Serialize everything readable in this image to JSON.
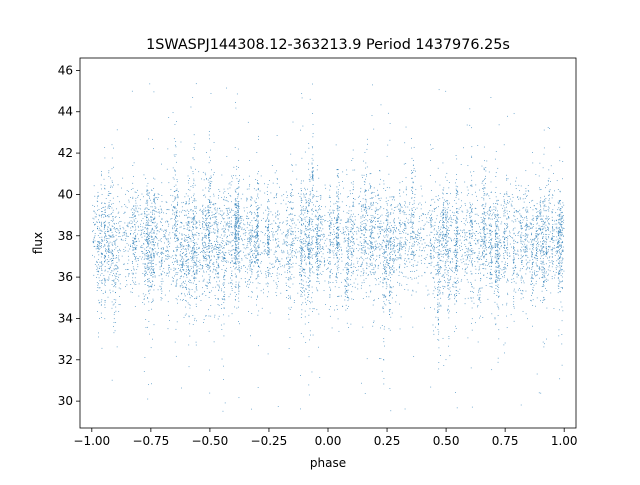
{
  "chart_data": {
    "type": "scatter",
    "title": "1SWASPJ144308.12-363213.9 Period 1437976.25s",
    "xlabel": "phase",
    "ylabel": "flux",
    "xlim": [
      -1.05,
      1.05
    ],
    "ylim": [
      28.7,
      46.6
    ],
    "x_ticks": [
      -1.0,
      -0.75,
      -0.5,
      -0.25,
      0.0,
      0.25,
      0.5,
      0.75,
      1.0
    ],
    "x_tick_labels": [
      "−1.00",
      "−0.75",
      "−0.50",
      "−0.25",
      "0.00",
      "0.25",
      "0.50",
      "0.75",
      "1.00"
    ],
    "y_ticks": [
      30,
      32,
      34,
      36,
      38,
      40,
      42,
      44,
      46
    ],
    "y_tick_labels": [
      "30",
      "32",
      "34",
      "36",
      "38",
      "40",
      "42",
      "44",
      "46"
    ],
    "point_color": "#1f77b4",
    "grid": false,
    "legend": "none",
    "data_description": {
      "phase_range": [
        -1.0,
        1.0
      ],
      "flux_core_range": [
        34.0,
        41.0
      ],
      "flux_mean": 37.8,
      "flux_outlier_range": [
        29.5,
        45.6
      ]
    }
  }
}
